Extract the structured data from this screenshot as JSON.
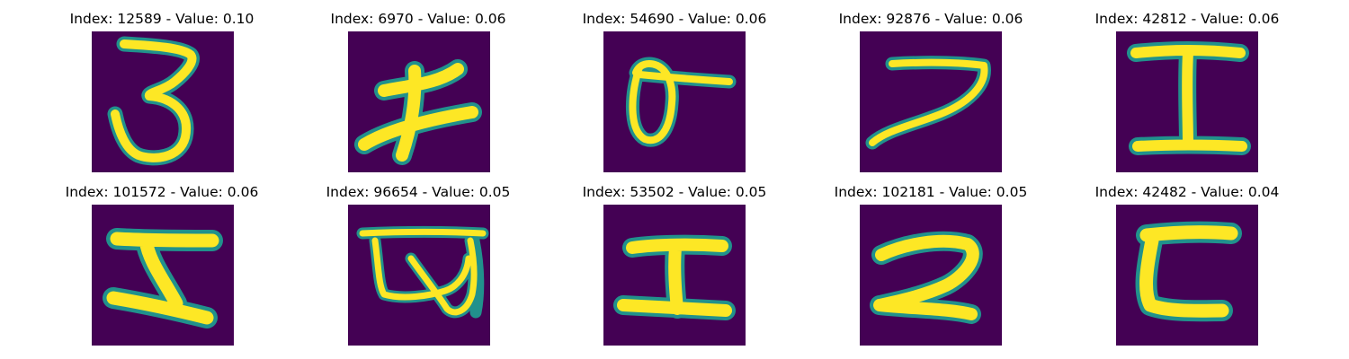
{
  "colors": {
    "background": "#440154",
    "glyph_core": "#fde725",
    "glyph_edge": "#21918c",
    "glyph_mid": "#35b779",
    "glyph_faint": "#31688e"
  },
  "panels": [
    {
      "title": "Index: 12589 - Value: 0.10",
      "index": "12589",
      "value": "0.10",
      "glyph": "digit-3"
    },
    {
      "title": "Index: 6970 - Value: 0.06",
      "index": "6970",
      "value": "0.06",
      "glyph": "stroke-character"
    },
    {
      "title": "Index: 54690 - Value: 0.06",
      "index": "54690",
      "value": "0.06",
      "glyph": "loop-with-bar"
    },
    {
      "title": "Index: 92876 - Value: 0.06",
      "index": "92876",
      "value": "0.06",
      "glyph": "digit-7"
    },
    {
      "title": "Index: 42812 - Value: 0.06",
      "index": "42812",
      "value": "0.06",
      "glyph": "letter-I"
    },
    {
      "title": "Index: 101572 - Value: 0.06",
      "index": "101572",
      "value": "0.06",
      "glyph": "z-like-character"
    },
    {
      "title": "Index: 96654 - Value: 0.05",
      "index": "96654",
      "value": "0.05",
      "glyph": "looped-character"
    },
    {
      "title": "Index: 53502 - Value: 0.05",
      "index": "53502",
      "value": "0.05",
      "glyph": "letter-I"
    },
    {
      "title": "Index: 102181 - Value: 0.05",
      "index": "102181",
      "value": "0.05",
      "glyph": "digit-2"
    },
    {
      "title": "Index: 42482 - Value: 0.04",
      "index": "42482",
      "value": "0.04",
      "glyph": "c-like-character"
    }
  ]
}
